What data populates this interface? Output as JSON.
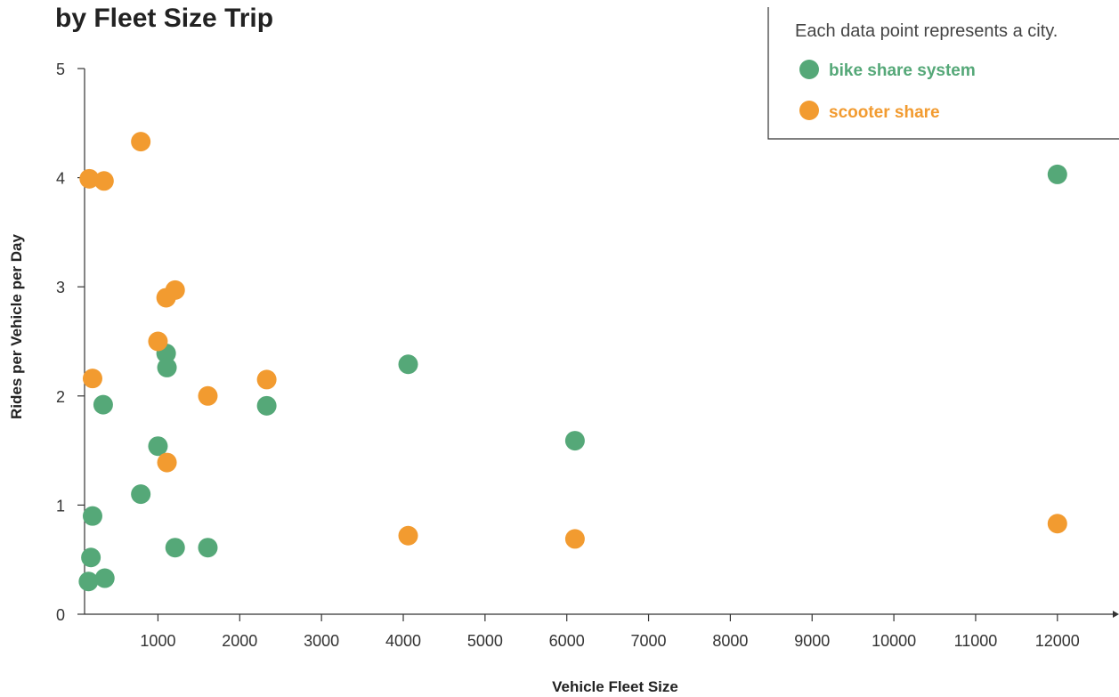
{
  "chart_data": {
    "type": "scatter",
    "title": "by Fleet Size Trip",
    "xlabel": "Vehicle Fleet Size",
    "ylabel": "Rides per Vehicle per Day",
    "xlim": [
      100,
      12600
    ],
    "ylim": [
      0,
      5
    ],
    "x_ticks": [
      1000,
      2000,
      3000,
      4000,
      5000,
      6000,
      7000,
      8000,
      9000,
      10000,
      11000,
      12000
    ],
    "y_ticks": [
      0,
      1,
      2,
      3,
      4,
      5
    ],
    "grid": false,
    "legend_position": "top-right",
    "legend_note": "Each data point represents a city.",
    "series": [
      {
        "name": "bike share system",
        "color": "#55a878",
        "points": [
          {
            "x": 150,
            "y": 0.3
          },
          {
            "x": 180,
            "y": 0.52
          },
          {
            "x": 200,
            "y": 0.9
          },
          {
            "x": 330,
            "y": 1.92
          },
          {
            "x": 350,
            "y": 0.33
          },
          {
            "x": 790,
            "y": 1.1
          },
          {
            "x": 1000,
            "y": 1.54
          },
          {
            "x": 1100,
            "y": 2.39
          },
          {
            "x": 1110,
            "y": 2.26
          },
          {
            "x": 1210,
            "y": 0.61
          },
          {
            "x": 1610,
            "y": 0.61
          },
          {
            "x": 2330,
            "y": 1.91
          },
          {
            "x": 4060,
            "y": 2.29
          },
          {
            "x": 6100,
            "y": 1.59
          },
          {
            "x": 12000,
            "y": 4.03
          }
        ]
      },
      {
        "name": "scooter share",
        "color": "#f29b30",
        "points": [
          {
            "x": 160,
            "y": 3.99
          },
          {
            "x": 200,
            "y": 2.16
          },
          {
            "x": 340,
            "y": 3.97
          },
          {
            "x": 790,
            "y": 4.33
          },
          {
            "x": 1000,
            "y": 2.5
          },
          {
            "x": 1100,
            "y": 2.9
          },
          {
            "x": 1110,
            "y": 1.39
          },
          {
            "x": 1210,
            "y": 2.97
          },
          {
            "x": 1610,
            "y": 2.0
          },
          {
            "x": 2330,
            "y": 2.15
          },
          {
            "x": 4060,
            "y": 0.72
          },
          {
            "x": 6100,
            "y": 0.69
          },
          {
            "x": 12000,
            "y": 0.83
          }
        ]
      }
    ]
  }
}
